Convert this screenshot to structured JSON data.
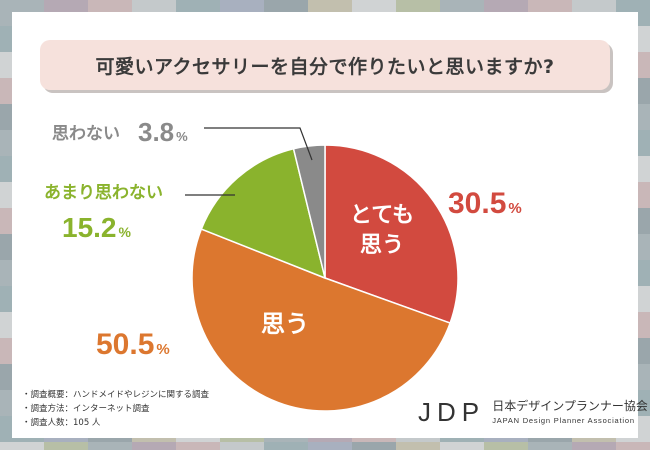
{
  "title": "可愛いアクセサリーを自分で作りたいと思いますか?",
  "chart_data": {
    "type": "pie",
    "title": "可愛いアクセサリーを自分で作りたいと思いますか?",
    "percent_suffix": "%",
    "slices": [
      {
        "label_lines": [
          "とても",
          "思う"
        ],
        "outside_label": "",
        "value": 30.5,
        "value_text": "30.5",
        "color": "#d24a3f"
      },
      {
        "label_lines": [
          "思う"
        ],
        "outside_label": "",
        "value": 50.5,
        "value_text": "50.5",
        "color": "#dc772f"
      },
      {
        "label_lines": [],
        "outside_label": "あまり思わない",
        "value": 15.2,
        "value_text": "15.2",
        "color": "#8ab32d"
      },
      {
        "label_lines": [],
        "outside_label": "思わない",
        "value": 3.8,
        "value_text": "3.8",
        "color": "#8a8a8a"
      }
    ]
  },
  "notes": [
    "・調査概要：ハンドメイドやレジンに関する調査",
    "・調査方法：インターネット調査",
    "・調査人数：105 人"
  ],
  "logo": {
    "mark": "JDP",
    "name_jp": "日本デザインプランナー協会",
    "name_en": "JAPAN Design Planner Association"
  }
}
